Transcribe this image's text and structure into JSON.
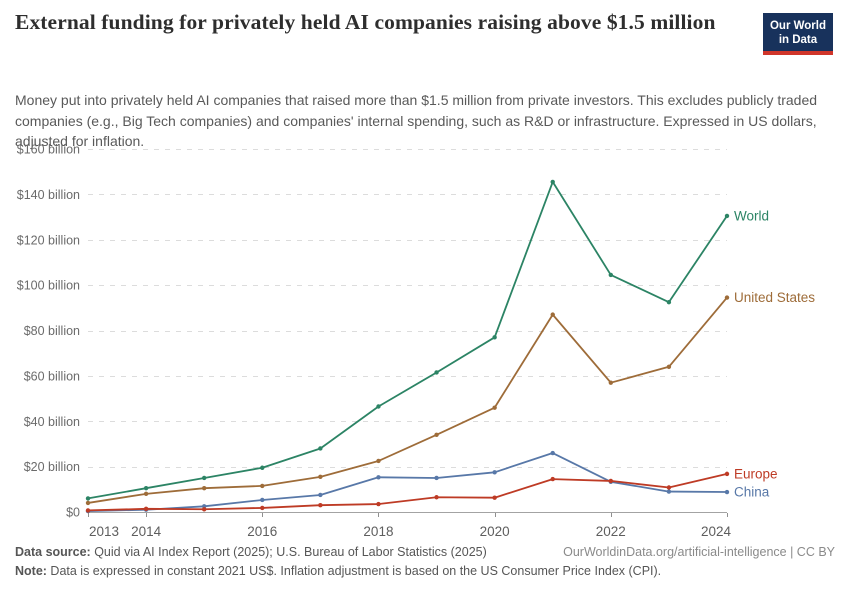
{
  "header": {
    "title": "External funding for privately held AI companies raising above $1.5 million",
    "logo": {
      "line1": "Our World",
      "line2": "in Data"
    }
  },
  "subtitle": "Money put into privately held AI companies that raised more than $1.5 million from private investors. This excludes publicly traded companies (e.g., Big Tech companies) and companies' internal spending, such as R&D or infrastructure. Expressed in US dollars, adjusted for inflation.",
  "brand_colors": {
    "logo_navy": "#18325c",
    "logo_red": "#d0352a"
  },
  "chart_data": {
    "type": "line",
    "title": "External funding for privately held AI companies raising above $1.5 million",
    "unit": "US$ billion, constant 2021",
    "x": [
      2013,
      2014,
      2015,
      2016,
      2017,
      2018,
      2019,
      2020,
      2021,
      2022,
      2023,
      2024
    ],
    "series": [
      {
        "name": "World",
        "color": "#2C8465",
        "values": [
          6,
          10.5,
          15,
          19.5,
          28,
          46.5,
          61.5,
          77,
          145.5,
          104.5,
          92.5,
          130.5
        ]
      },
      {
        "name": "United States",
        "color": "#9E6C39",
        "values": [
          4,
          8,
          10.5,
          11.5,
          15.5,
          22.5,
          34,
          46,
          87,
          57,
          64,
          94.5
        ]
      },
      {
        "name": "China",
        "color": "#5878A8",
        "values": [
          0.4,
          1,
          2.5,
          5.3,
          7.5,
          15.3,
          15,
          17.5,
          26,
          13.3,
          9,
          8.8
        ]
      },
      {
        "name": "Europe",
        "color": "#BE3B25",
        "values": [
          0.7,
          1.4,
          1.2,
          1.8,
          3,
          3.5,
          6.5,
          6.3,
          14.5,
          13.7,
          10.8,
          16.8
        ]
      }
    ],
    "ylim": [
      0,
      160
    ],
    "yticks": [
      0,
      20,
      40,
      60,
      80,
      100,
      120,
      140,
      160
    ],
    "ytick_labels": [
      "$0",
      "$20 billion",
      "$40 billion",
      "$60 billion",
      "$80 billion",
      "$100 billion",
      "$120 billion",
      "$140 billion",
      "$160 billion"
    ],
    "xticks": [
      2013,
      2014,
      2016,
      2018,
      2020,
      2022,
      2024
    ],
    "xtick_labels": [
      "2013",
      "2014",
      "2016",
      "2018",
      "2020",
      "2022",
      "2024"
    ],
    "grid": "horizontal-dashed",
    "legend_position": "end-of-line"
  },
  "footer": {
    "source_label": "Data source:",
    "source_text": " Quid via AI Index Report (2025); U.S. Bureau of Labor Statistics (2025)",
    "rights": "OurWorldinData.org/artificial-intelligence | CC BY",
    "note_label": "Note:",
    "note_text": " Data is expressed in constant 2021 US$. Inflation adjustment is based on the US Consumer Price Index (CPI)."
  }
}
